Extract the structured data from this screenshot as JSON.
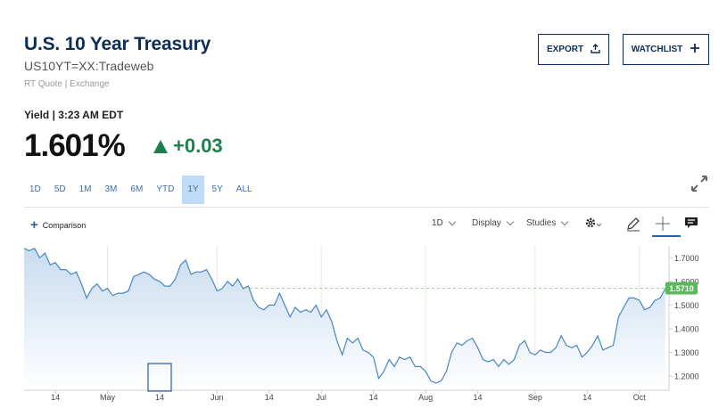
{
  "header": {
    "title": "U.S. 10 Year Treasury",
    "symbol": "US10YT=XX:Tradeweb",
    "source": "RT Quote | Exchange",
    "export_label": "EXPORT",
    "watchlist_label": "WATCHLIST"
  },
  "quote": {
    "yield_label": "Yield | 3:23 AM EDT",
    "price": "1.601%",
    "change": "+0.03",
    "change_color": "#1b7f4e"
  },
  "ranges": {
    "items": [
      "1D",
      "5D",
      "1M",
      "3M",
      "6M",
      "YTD",
      "1Y",
      "5Y",
      "ALL"
    ],
    "active": "1Y"
  },
  "toolbar": {
    "comparison_label": "Comparison",
    "interval": "1D",
    "display_label": "Display",
    "studies_label": "Studies"
  },
  "icons": [
    "upload-icon",
    "plus-icon",
    "expand-icon",
    "gear-icon",
    "pencil-icon",
    "crosshair-icon",
    "comment-icon"
  ],
  "chart_data": {
    "type": "area",
    "title": "",
    "xlabel": "",
    "ylabel": "",
    "x_tick_labels": [
      "14",
      "May",
      "14",
      "Jun",
      "14",
      "Jul",
      "14",
      "Aug",
      "14",
      "Sep",
      "14",
      "Oct"
    ],
    "y_ticks": [
      1.2,
      1.3,
      1.4,
      1.5,
      1.6,
      1.7
    ],
    "y_tick_labels": [
      "1.2000",
      "1.3000",
      "1.4000",
      "1.5000",
      "1.6000",
      "1.7000"
    ],
    "ylim": [
      1.14,
      1.75
    ],
    "grid": "vertical",
    "current_value_label": "1.5710",
    "current_value": 1.571,
    "line_color": "#4a86c5",
    "fill_color": "#c8dcef",
    "label_color": "#5cb85c",
    "series": [
      {
        "values": [
          1.74,
          1.73,
          1.74,
          1.7,
          1.72,
          1.67,
          1.68,
          1.65,
          1.65,
          1.63,
          1.64,
          1.59,
          1.53,
          1.57,
          1.59,
          1.56,
          1.57,
          1.54,
          1.55,
          1.55,
          1.56,
          1.62,
          1.63,
          1.64,
          1.63,
          1.61,
          1.6,
          1.58,
          1.58,
          1.61,
          1.67,
          1.69,
          1.63,
          1.64,
          1.64,
          1.65,
          1.61,
          1.56,
          1.57,
          1.6,
          1.58,
          1.61,
          1.57,
          1.58,
          1.52,
          1.49,
          1.48,
          1.5,
          1.5,
          1.55,
          1.5,
          1.45,
          1.49,
          1.47,
          1.48,
          1.47,
          1.5,
          1.45,
          1.48,
          1.43,
          1.35,
          1.29,
          1.36,
          1.34,
          1.36,
          1.31,
          1.3,
          1.28,
          1.19,
          1.22,
          1.27,
          1.24,
          1.28,
          1.27,
          1.28,
          1.24,
          1.24,
          1.22,
          1.18,
          1.17,
          1.18,
          1.22,
          1.3,
          1.34,
          1.33,
          1.35,
          1.36,
          1.32,
          1.27,
          1.26,
          1.27,
          1.24,
          1.27,
          1.25,
          1.27,
          1.33,
          1.35,
          1.3,
          1.29,
          1.31,
          1.3,
          1.3,
          1.32,
          1.37,
          1.33,
          1.32,
          1.33,
          1.28,
          1.3,
          1.33,
          1.37,
          1.31,
          1.32,
          1.33,
          1.45,
          1.49,
          1.53,
          1.53,
          1.52,
          1.48,
          1.49,
          1.52,
          1.53,
          1.571
        ]
      }
    ]
  }
}
